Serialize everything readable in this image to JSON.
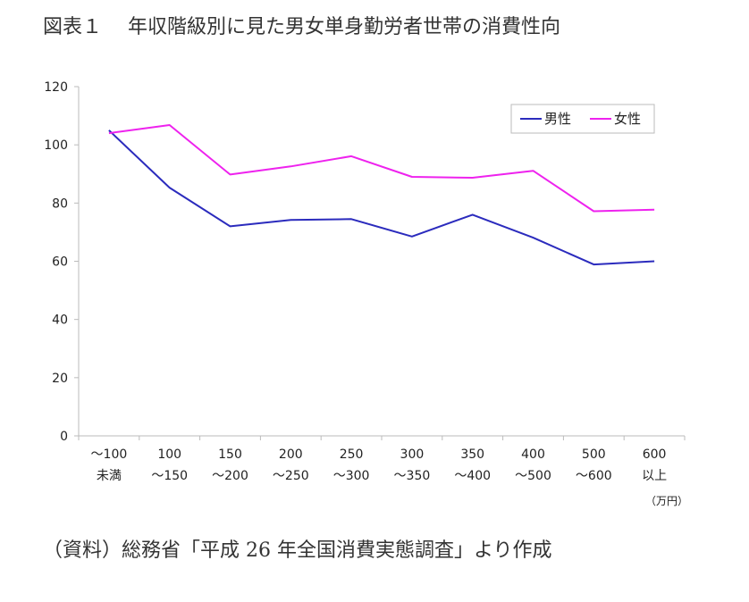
{
  "figure": {
    "title": "図表１　 年収階級別に見た男女単身勤労者世帯の消費性向",
    "source": "（資料）総務省「平成 26 年全国消費実態調査」より作成"
  },
  "chart_data": {
    "type": "line",
    "title": "",
    "xlabel": "",
    "ylabel": "",
    "x_unit": "（万円）",
    "categories": [
      [
        "～100",
        "未満"
      ],
      [
        "100",
        "～150"
      ],
      [
        "150",
        "～200"
      ],
      [
        "200",
        "～250"
      ],
      [
        "250",
        "～300"
      ],
      [
        "300",
        "～350"
      ],
      [
        "350",
        "～400"
      ],
      [
        "400",
        "～500"
      ],
      [
        "500",
        "～600"
      ],
      [
        "600",
        "以上"
      ]
    ],
    "ylim": [
      0,
      120
    ],
    "yticks": [
      0,
      20,
      40,
      60,
      80,
      100,
      120
    ],
    "grid": false,
    "legend_position": "top-right",
    "series": [
      {
        "name": "男性",
        "color": "#2b2bbd",
        "values": [
          105,
          85.3,
          72,
          74.2,
          74.5,
          68.5,
          76,
          68.1,
          58.9,
          60
        ]
      },
      {
        "name": "女性",
        "color": "#ee22ee",
        "values": [
          104,
          106.8,
          89.8,
          92.6,
          96.1,
          89,
          88.7,
          91.1,
          77.2,
          77.7
        ]
      }
    ]
  }
}
